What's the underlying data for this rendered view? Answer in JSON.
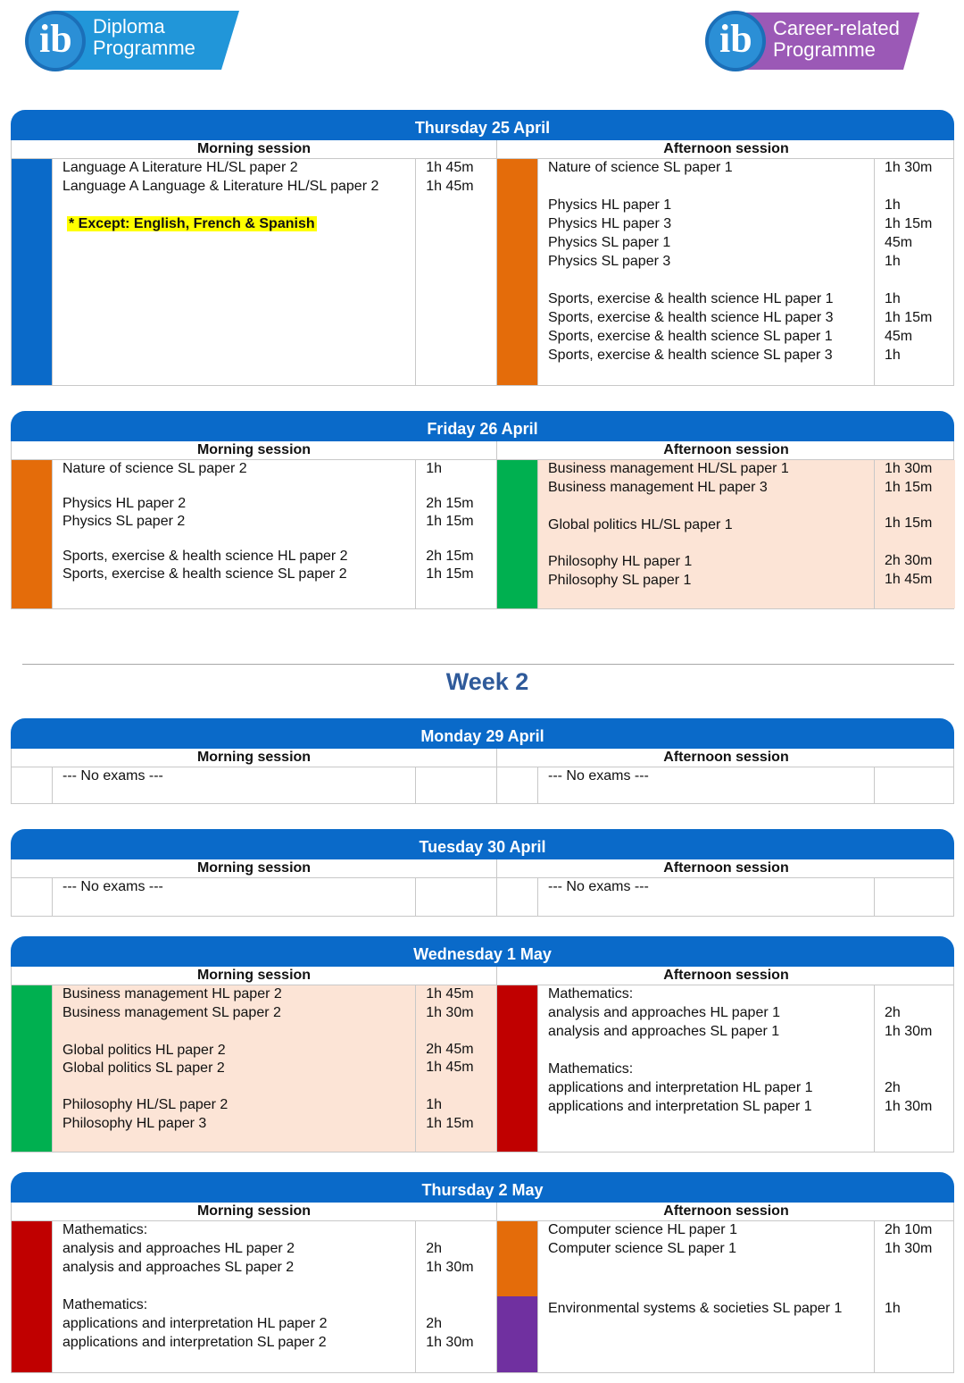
{
  "logos": {
    "left": {
      "letters": "ib",
      "line1": "Diploma",
      "line2": "Programme",
      "color": "#2196d9"
    },
    "right": {
      "letters": "ib",
      "line1": "Career-related",
      "line2": "Programme",
      "color": "#8e44ad"
    }
  },
  "labels": {
    "morning": "Morning session",
    "afternoon": "Afternoon session"
  },
  "week2": "Week 2",
  "colors": {
    "header": "#0a6ac9",
    "blue": "#0a6ac9",
    "orange": "#e46c0a",
    "green": "#00b050",
    "red": "#c00000",
    "purple": "#7030a0",
    "peach": "#fce4d6"
  },
  "days": [
    {
      "title": "Thursday 25 April",
      "morning": {
        "color": "blue",
        "subjects": [
          "Language A Literature HL/SL paper 2",
          "Language A Language & Literature HL/SL paper 2",
          "",
          "* Except: English, French & Spanish"
        ],
        "durations": [
          "1h 45m",
          "1h 45m"
        ]
      },
      "afternoon": {
        "color": "orange",
        "subjects": [
          "Nature of science SL paper 1",
          "",
          "Physics HL paper 1",
          "Physics HL paper 3",
          "Physics SL paper 1",
          "Physics SL paper 3",
          "",
          "Sports, exercise & health science HL paper 1",
          "Sports, exercise & health science HL paper 3",
          "Sports, exercise & health science SL paper 1",
          "Sports, exercise & health science SL paper 3"
        ],
        "durations": [
          "1h 30m",
          "",
          "1h",
          "1h 15m",
          "45m",
          "1h",
          "",
          "1h",
          "1h 15m",
          "45m",
          "1h"
        ]
      }
    },
    {
      "title": "Friday 26 April",
      "morning": {
        "color": "orange",
        "subjects": [
          "Nature of science SL paper 2",
          "Physics HL paper 2",
          "Physics SL paper 2",
          "Sports, exercise & health science HL paper 2",
          "Sports, exercise & health science SL paper 2"
        ],
        "durations": [
          "1h",
          "2h 15m",
          "1h 15m",
          "2h 15m",
          "1h 15m"
        ]
      },
      "afternoon": {
        "color": "green",
        "subjects": [
          "Business management HL/SL paper 1",
          "Business management HL paper 3",
          "Global politics HL/SL paper 1",
          "Philosophy HL paper 1",
          "Philosophy SL paper 1"
        ],
        "durations": [
          "1h 30m",
          "1h 15m",
          "1h 15m",
          "2h 30m",
          "1h 45m"
        ]
      }
    },
    {
      "title": "Monday 29 April",
      "morning": {
        "subjects": [
          "--- No exams ---"
        ]
      },
      "afternoon": {
        "subjects": [
          "--- No exams ---"
        ]
      }
    },
    {
      "title": "Tuesday 30 April",
      "morning": {
        "subjects": [
          "--- No exams ---"
        ]
      },
      "afternoon": {
        "subjects": [
          "--- No exams ---"
        ]
      }
    },
    {
      "title": "Wednesday 1 May",
      "morning": {
        "color": "green",
        "subjects": [
          "Business management HL paper 2",
          "Business management SL paper 2",
          "Global politics HL paper 2",
          "Global politics SL paper 2",
          "Philosophy HL/SL paper 2",
          "Philosophy HL paper 3"
        ],
        "durations": [
          "1h 45m",
          "1h 30m",
          "2h 45m",
          "1h 45m",
          "1h",
          "1h 15m"
        ]
      },
      "afternoon": {
        "color": "red",
        "subjects": [
          "Mathematics:",
          "analysis and approaches HL paper 1",
          "analysis and approaches SL paper 1",
          "Mathematics:",
          "applications and interpretation HL paper 1",
          "applications and interpretation SL paper 1"
        ],
        "durations": [
          "2h",
          "1h 30m",
          "2h",
          "1h 30m"
        ]
      }
    },
    {
      "title": "Thursday 2 May",
      "morning": {
        "color": "red",
        "subjects": [
          "Mathematics:",
          "analysis and approaches HL paper 2",
          "analysis and approaches SL paper 2",
          "Mathematics:",
          "applications and interpretation HL paper 2",
          "applications and interpretation SL paper 2"
        ],
        "durations": [
          "2h",
          "1h 30m",
          "2h",
          "1h 30m"
        ]
      },
      "afternoon": {
        "color": "orange",
        "color2": "purple",
        "subjects": [
          "Computer science HL paper 1",
          "Computer science SL paper 1",
          "Environmental systems & societies SL paper 1"
        ],
        "durations": [
          "2h 10m",
          "1h 30m",
          "1h"
        ]
      }
    }
  ]
}
